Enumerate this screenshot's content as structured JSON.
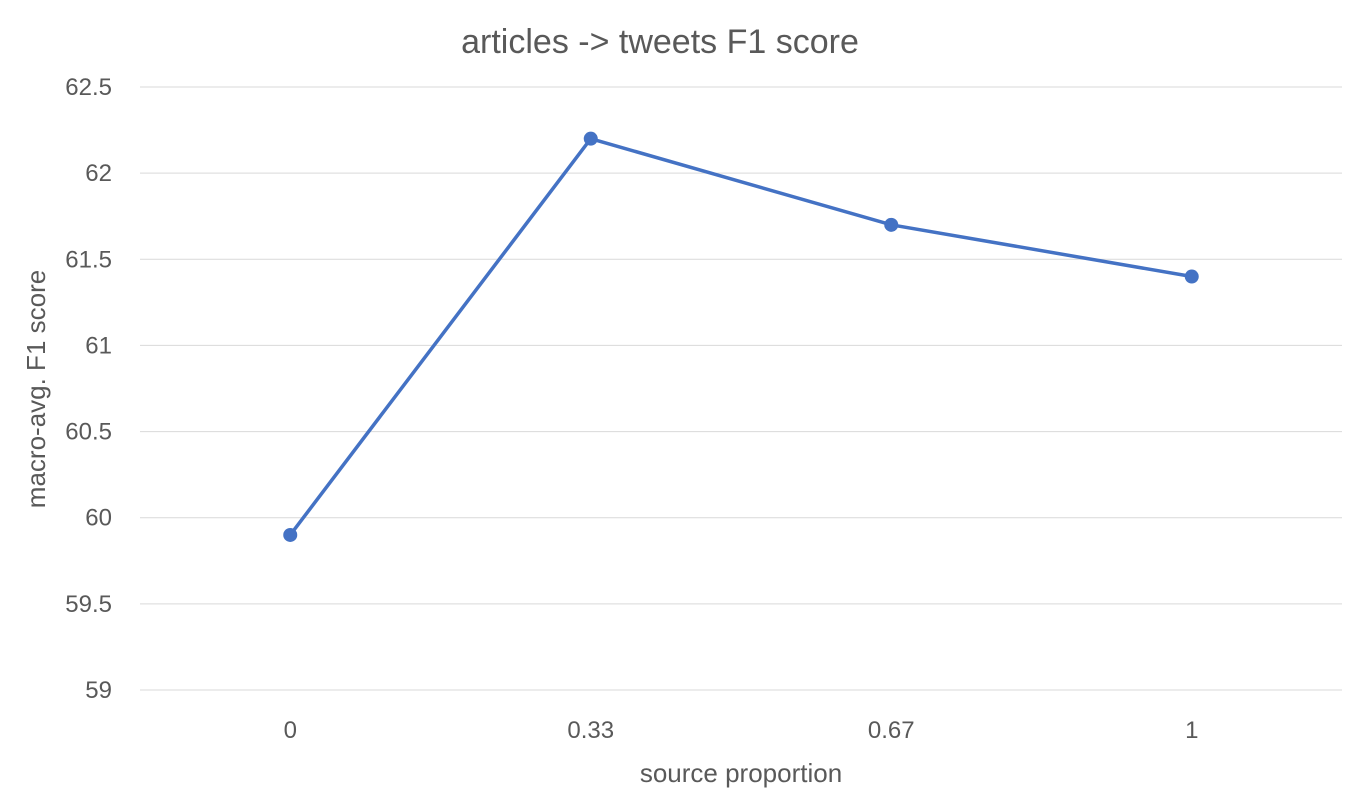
{
  "chart_data": {
    "type": "line",
    "title": "articles -> tweets F1 score",
    "xlabel": "source proportion",
    "ylabel": "macro-avg. F1 score",
    "categories": [
      "0",
      "0.33",
      "0.67",
      "1"
    ],
    "series": [
      {
        "values": [
          59.9,
          62.2,
          61.7,
          61.4
        ],
        "color": "#4472c4"
      }
    ],
    "ylim": [
      59,
      62.5
    ],
    "yticks": [
      "59",
      "59.5",
      "60",
      "60.5",
      "61",
      "61.5",
      "62",
      "62.5"
    ],
    "grid": true,
    "legend": "none"
  }
}
